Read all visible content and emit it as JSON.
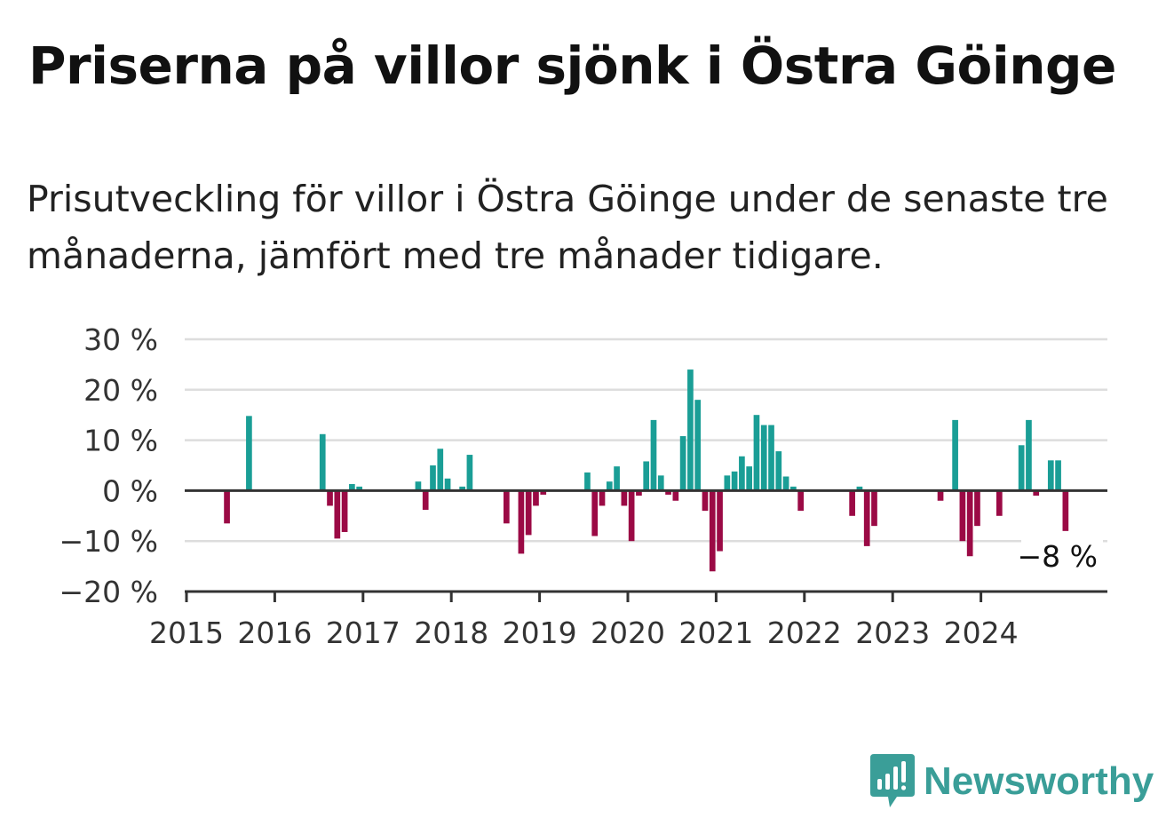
{
  "header": {
    "title": "Priserna på villor sjönk i Östra Göinge",
    "subtitle": "Prisutveckling för villor i Östra Göinge under de senaste tre månaderna, jämfört med tre månader tidigare."
  },
  "brand": {
    "name": "Newsworthy",
    "color": "#3a9e98",
    "icon": "bar-chart-speech-bubble-icon"
  },
  "chart_data": {
    "type": "bar",
    "title": "",
    "xlabel": "",
    "ylabel": "",
    "x_unit": "month",
    "ylim": [
      -20,
      30
    ],
    "y_ticks": [
      30,
      20,
      10,
      0,
      -10,
      -20
    ],
    "y_tick_labels": [
      "30 %",
      "20 %",
      "10 %",
      "0 %",
      "−10 %",
      "−20 %"
    ],
    "x_ticks": [
      "2015",
      "2016",
      "2017",
      "2018",
      "2019",
      "2020",
      "2021",
      "2022",
      "2023",
      "2024"
    ],
    "grid": true,
    "legend": "none",
    "colors": {
      "positive": "#1a9e96",
      "negative": "#9b0a45",
      "grid": "#dddddd",
      "axis": "#333333"
    },
    "annotation": {
      "text": "−8 %",
      "x": "2024-12"
    },
    "values": [
      {
        "x": "2015-06",
        "y": -6.5
      },
      {
        "x": "2015-09",
        "y": 14.8
      },
      {
        "x": "2016-07",
        "y": 11.2
      },
      {
        "x": "2016-08",
        "y": -3.0
      },
      {
        "x": "2016-09",
        "y": -9.5
      },
      {
        "x": "2016-10",
        "y": -8.2
      },
      {
        "x": "2016-11",
        "y": 1.3
      },
      {
        "x": "2016-12",
        "y": 0.8
      },
      {
        "x": "2017-08",
        "y": 1.8
      },
      {
        "x": "2017-09",
        "y": -3.8
      },
      {
        "x": "2017-10",
        "y": 5.0
      },
      {
        "x": "2017-11",
        "y": 8.3
      },
      {
        "x": "2017-12",
        "y": 2.4
      },
      {
        "x": "2018-02",
        "y": 0.8
      },
      {
        "x": "2018-03",
        "y": 7.1
      },
      {
        "x": "2018-08",
        "y": -6.5
      },
      {
        "x": "2018-10",
        "y": -12.5
      },
      {
        "x": "2018-11",
        "y": -8.8
      },
      {
        "x": "2018-12",
        "y": -3.0
      },
      {
        "x": "2019-01",
        "y": -0.8
      },
      {
        "x": "2019-07",
        "y": 3.6
      },
      {
        "x": "2019-08",
        "y": -9.0
      },
      {
        "x": "2019-09",
        "y": -3.0
      },
      {
        "x": "2019-10",
        "y": 1.8
      },
      {
        "x": "2019-11",
        "y": 4.8
      },
      {
        "x": "2019-12",
        "y": -3.0
      },
      {
        "x": "2020-01",
        "y": -10.0
      },
      {
        "x": "2020-02",
        "y": -1.0
      },
      {
        "x": "2020-03",
        "y": 5.8
      },
      {
        "x": "2020-04",
        "y": 14.0
      },
      {
        "x": "2020-05",
        "y": 3.0
      },
      {
        "x": "2020-06",
        "y": -0.8
      },
      {
        "x": "2020-07",
        "y": -2.0
      },
      {
        "x": "2020-08",
        "y": 10.8
      },
      {
        "x": "2020-09",
        "y": 24.0
      },
      {
        "x": "2020-10",
        "y": 18.0
      },
      {
        "x": "2020-11",
        "y": -4.0
      },
      {
        "x": "2020-12",
        "y": -16.0
      },
      {
        "x": "2021-01",
        "y": -12.0
      },
      {
        "x": "2021-02",
        "y": 3.0
      },
      {
        "x": "2021-03",
        "y": 3.8
      },
      {
        "x": "2021-04",
        "y": 6.8
      },
      {
        "x": "2021-05",
        "y": 4.8
      },
      {
        "x": "2021-06",
        "y": 15.0
      },
      {
        "x": "2021-07",
        "y": 13.0
      },
      {
        "x": "2021-08",
        "y": 13.0
      },
      {
        "x": "2021-09",
        "y": 7.8
      },
      {
        "x": "2021-10",
        "y": 2.8
      },
      {
        "x": "2021-11",
        "y": 0.8
      },
      {
        "x": "2021-12",
        "y": -4.0
      },
      {
        "x": "2022-07",
        "y": -5.0
      },
      {
        "x": "2022-08",
        "y": 0.8
      },
      {
        "x": "2022-09",
        "y": -11.0
      },
      {
        "x": "2022-10",
        "y": -7.0
      },
      {
        "x": "2023-07",
        "y": -2.0
      },
      {
        "x": "2023-09",
        "y": 14.0
      },
      {
        "x": "2023-10",
        "y": -10.0
      },
      {
        "x": "2023-11",
        "y": -13.0
      },
      {
        "x": "2023-12",
        "y": -7.0
      },
      {
        "x": "2024-03",
        "y": -5.0
      },
      {
        "x": "2024-06",
        "y": 9.0
      },
      {
        "x": "2024-07",
        "y": 14.0
      },
      {
        "x": "2024-08",
        "y": -1.0
      },
      {
        "x": "2024-10",
        "y": 6.0
      },
      {
        "x": "2024-11",
        "y": 6.0
      },
      {
        "x": "2024-12",
        "y": -8.0
      }
    ]
  }
}
